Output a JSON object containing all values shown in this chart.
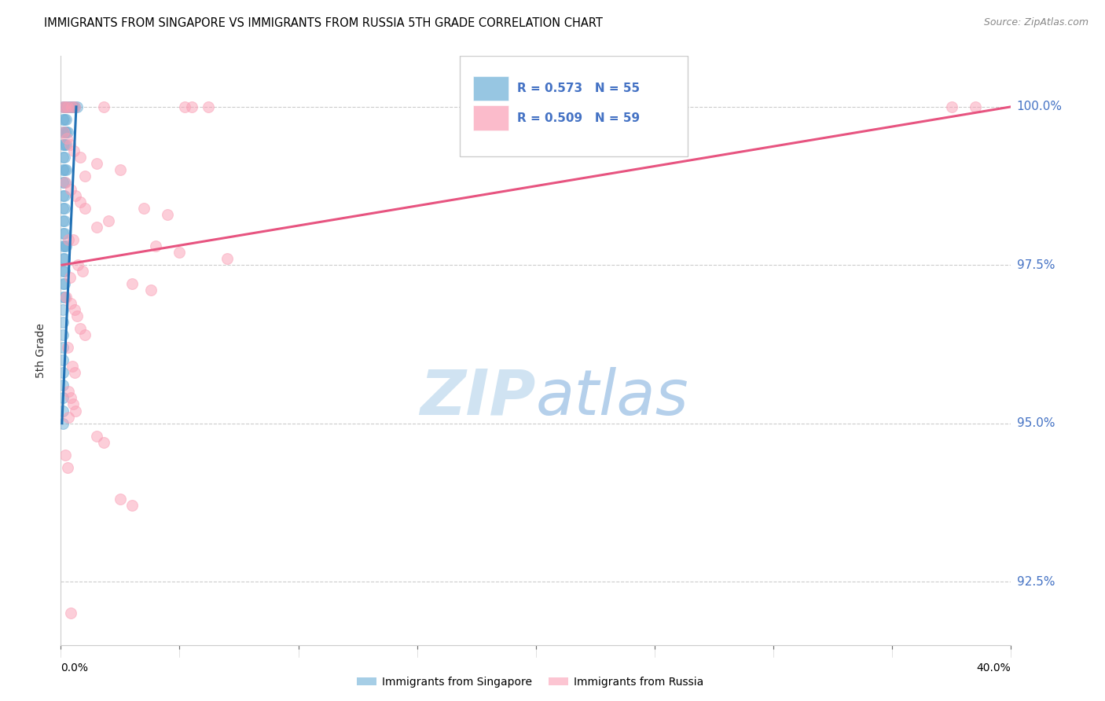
{
  "title": "IMMIGRANTS FROM SINGAPORE VS IMMIGRANTS FROM RUSSIA 5TH GRADE CORRELATION CHART",
  "source": "Source: ZipAtlas.com",
  "ylabel": "5th Grade",
  "y_ticks": [
    92.5,
    95.0,
    97.5,
    100.0
  ],
  "y_tick_labels": [
    "92.5%",
    "95.0%",
    "97.5%",
    "100.0%"
  ],
  "x_range": [
    0.0,
    40.0
  ],
  "y_range": [
    91.5,
    100.8
  ],
  "x_ticks": [
    0,
    5,
    10,
    15,
    20,
    25,
    30,
    35,
    40
  ],
  "legend_r_singapore": "R = 0.573",
  "legend_n_singapore": "N = 55",
  "legend_r_russia": "R = 0.509",
  "legend_n_russia": "N = 59",
  "singapore_color": "#6baed6",
  "russia_color": "#fa9fb5",
  "singapore_line_color": "#2171b5",
  "russia_line_color": "#e75480",
  "tick_color": "#4472C4",
  "grid_color": "#cccccc",
  "singapore_points": [
    [
      0.08,
      100.0
    ],
    [
      0.15,
      100.0
    ],
    [
      0.22,
      100.0
    ],
    [
      0.3,
      100.0
    ],
    [
      0.38,
      100.0
    ],
    [
      0.45,
      100.0
    ],
    [
      0.52,
      100.0
    ],
    [
      0.6,
      100.0
    ],
    [
      0.68,
      100.0
    ],
    [
      0.08,
      99.8
    ],
    [
      0.15,
      99.8
    ],
    [
      0.22,
      99.8
    ],
    [
      0.08,
      99.6
    ],
    [
      0.15,
      99.6
    ],
    [
      0.22,
      99.6
    ],
    [
      0.3,
      99.6
    ],
    [
      0.08,
      99.4
    ],
    [
      0.15,
      99.4
    ],
    [
      0.22,
      99.4
    ],
    [
      0.08,
      99.2
    ],
    [
      0.15,
      99.2
    ],
    [
      0.08,
      99.0
    ],
    [
      0.15,
      99.0
    ],
    [
      0.22,
      99.0
    ],
    [
      0.08,
      98.8
    ],
    [
      0.15,
      98.8
    ],
    [
      0.08,
      98.6
    ],
    [
      0.15,
      98.6
    ],
    [
      0.08,
      98.4
    ],
    [
      0.15,
      98.4
    ],
    [
      0.08,
      98.2
    ],
    [
      0.15,
      98.2
    ],
    [
      0.08,
      98.0
    ],
    [
      0.15,
      98.0
    ],
    [
      0.08,
      97.8
    ],
    [
      0.15,
      97.8
    ],
    [
      0.22,
      97.8
    ],
    [
      0.08,
      97.6
    ],
    [
      0.15,
      97.6
    ],
    [
      0.08,
      97.4
    ],
    [
      0.15,
      97.4
    ],
    [
      0.08,
      97.2
    ],
    [
      0.15,
      97.2
    ],
    [
      0.08,
      97.0
    ],
    [
      0.15,
      97.0
    ],
    [
      0.08,
      96.8
    ],
    [
      0.08,
      96.6
    ],
    [
      0.08,
      96.4
    ],
    [
      0.08,
      96.2
    ],
    [
      0.08,
      96.0
    ],
    [
      0.08,
      95.8
    ],
    [
      0.08,
      95.6
    ],
    [
      0.08,
      95.4
    ],
    [
      0.08,
      95.2
    ],
    [
      0.08,
      95.0
    ]
  ],
  "russia_points": [
    [
      0.1,
      100.0
    ],
    [
      0.2,
      100.0
    ],
    [
      0.3,
      100.0
    ],
    [
      0.45,
      100.0
    ],
    [
      0.6,
      100.0
    ],
    [
      1.8,
      100.0
    ],
    [
      5.2,
      100.0
    ],
    [
      5.5,
      100.0
    ],
    [
      6.2,
      100.0
    ],
    [
      37.5,
      100.0
    ],
    [
      38.5,
      100.0
    ],
    [
      0.12,
      99.6
    ],
    [
      0.25,
      99.5
    ],
    [
      0.4,
      99.4
    ],
    [
      0.55,
      99.3
    ],
    [
      0.8,
      99.2
    ],
    [
      1.5,
      99.1
    ],
    [
      2.5,
      99.0
    ],
    [
      1.0,
      98.9
    ],
    [
      0.2,
      98.8
    ],
    [
      0.42,
      98.7
    ],
    [
      0.62,
      98.6
    ],
    [
      0.82,
      98.5
    ],
    [
      1.02,
      98.4
    ],
    [
      3.5,
      98.4
    ],
    [
      4.5,
      98.3
    ],
    [
      2.0,
      98.2
    ],
    [
      1.5,
      98.1
    ],
    [
      0.32,
      97.9
    ],
    [
      0.52,
      97.9
    ],
    [
      4.0,
      97.8
    ],
    [
      5.0,
      97.7
    ],
    [
      7.0,
      97.6
    ],
    [
      0.72,
      97.5
    ],
    [
      0.92,
      97.4
    ],
    [
      0.38,
      97.3
    ],
    [
      3.0,
      97.2
    ],
    [
      3.8,
      97.1
    ],
    [
      0.22,
      97.0
    ],
    [
      0.42,
      96.9
    ],
    [
      0.58,
      96.8
    ],
    [
      0.68,
      96.7
    ],
    [
      0.82,
      96.5
    ],
    [
      1.02,
      96.4
    ],
    [
      0.28,
      96.2
    ],
    [
      0.48,
      95.9
    ],
    [
      0.58,
      95.8
    ],
    [
      0.32,
      95.5
    ],
    [
      0.42,
      95.4
    ],
    [
      0.52,
      95.3
    ],
    [
      0.62,
      95.2
    ],
    [
      0.32,
      95.1
    ],
    [
      1.5,
      94.8
    ],
    [
      1.8,
      94.7
    ],
    [
      0.18,
      94.5
    ],
    [
      0.28,
      94.3
    ],
    [
      2.5,
      93.8
    ],
    [
      3.0,
      93.7
    ],
    [
      0.42,
      92.0
    ]
  ],
  "singapore_trendline": [
    [
      0.05,
      95.0
    ],
    [
      0.65,
      100.0
    ]
  ],
  "russia_trendline": [
    [
      0.05,
      97.5
    ],
    [
      40.0,
      100.0
    ]
  ]
}
